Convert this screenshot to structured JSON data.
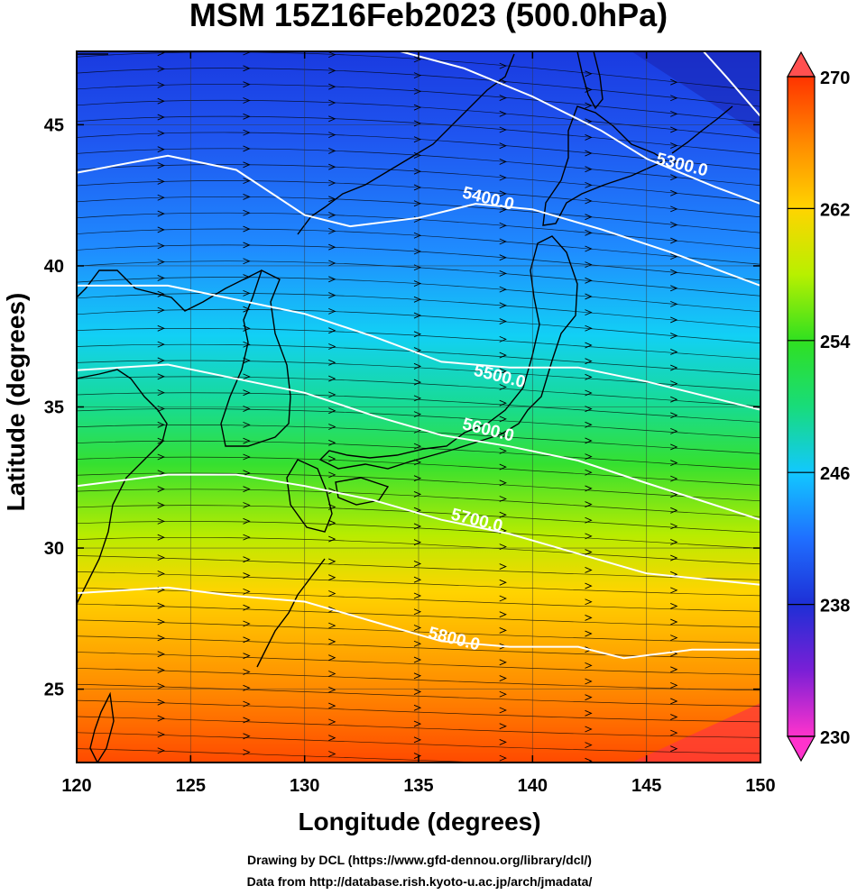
{
  "title": "MSM 15Z16Feb2023 (500.0hPa)",
  "xlabel": "Longitude (degrees)",
  "ylabel": "Latitude  (degrees)",
  "credits": [
    "Drawing by DCL (https://www.gfd-dennou.org/library/dcl/)",
    "Data from http://database.rish.kyoto-u.ac.jp/arch/jmadata/"
  ],
  "x_ticks": [
    "120",
    "125",
    "130",
    "135",
    "140",
    "145",
    "150"
  ],
  "y_ticks": [
    "25",
    "30",
    "35",
    "40",
    "45"
  ],
  "colorbar": {
    "ticks": [
      "230",
      "238",
      "246",
      "254",
      "262",
      "270"
    ],
    "min": 230,
    "max": 270,
    "colors": [
      "#ff33cc",
      "#7a1fd6",
      "#1e2fd6",
      "#1f6fff",
      "#12c8ff",
      "#18dc7a",
      "#30e020",
      "#b8f000",
      "#ffd400",
      "#ff8a00",
      "#ff3300"
    ]
  },
  "chart_data": {
    "type": "heatmap",
    "title": "MSM 15Z16Feb2023 (500.0hPa)",
    "xlabel": "Longitude (degrees)",
    "ylabel": "Latitude  (degrees)",
    "xlim": [
      120,
      150
    ],
    "ylim": [
      22.4,
      47.6
    ],
    "color_range": [
      230,
      270
    ],
    "contour_labels": [
      {
        "label": "5300.0",
        "lon": 146.5,
        "lat": 43.4
      },
      {
        "label": "5400.0",
        "lon": 138,
        "lat": 42.2
      },
      {
        "label": "5500.0",
        "lon": 138.5,
        "lat": 35.9
      },
      {
        "label": "5600.0",
        "lon": 138,
        "lat": 34.0
      },
      {
        "label": "5700.0",
        "lon": 137.5,
        "lat": 30.8
      },
      {
        "label": "5800.0",
        "lon": 136.5,
        "lat": 26.6
      }
    ],
    "contours": [
      {
        "value": "5300.0",
        "points": [
          [
            134.2,
            47.6
          ],
          [
            137,
            47
          ],
          [
            140,
            46
          ],
          [
            143,
            44.8
          ],
          [
            145,
            43.8
          ],
          [
            148,
            42.8
          ],
          [
            150,
            42.2
          ]
        ]
      },
      {
        "value": "5300.0",
        "points": [
          [
            147.5,
            47.6
          ],
          [
            148.5,
            46.7
          ],
          [
            150,
            45.3
          ]
        ]
      },
      {
        "value": "5400.0",
        "points": [
          [
            120,
            43.3
          ],
          [
            124,
            43.9
          ],
          [
            127,
            43.4
          ],
          [
            130,
            41.8
          ],
          [
            132,
            41.4
          ],
          [
            135,
            41.7
          ],
          [
            137.5,
            42.2
          ],
          [
            140,
            42
          ],
          [
            143,
            41.3
          ],
          [
            146,
            40.5
          ],
          [
            150,
            39.3
          ]
        ]
      },
      {
        "value": "5500.0",
        "points": [
          [
            120,
            39.3
          ],
          [
            124,
            39.3
          ],
          [
            127,
            38.8
          ],
          [
            130,
            38.3
          ],
          [
            133,
            37.5
          ],
          [
            136,
            36.6
          ],
          [
            139,
            36.4
          ],
          [
            142,
            36.4
          ],
          [
            145,
            35.9
          ],
          [
            150,
            34.9
          ]
        ]
      },
      {
        "value": "5600.0",
        "points": [
          [
            120,
            36.3
          ],
          [
            124,
            36.5
          ],
          [
            127,
            36
          ],
          [
            130,
            35.5
          ],
          [
            133,
            34.7
          ],
          [
            136,
            34.0
          ],
          [
            139,
            33.6
          ],
          [
            142,
            33.1
          ],
          [
            145,
            32.3
          ],
          [
            150,
            31
          ]
        ]
      },
      {
        "value": "5700.0",
        "points": [
          [
            120,
            32.2
          ],
          [
            124,
            32.6
          ],
          [
            127,
            32.6
          ],
          [
            130,
            32.2
          ],
          [
            133,
            31.7
          ],
          [
            136,
            31.0
          ],
          [
            139,
            30.5
          ],
          [
            142,
            29.8
          ],
          [
            145,
            29.1
          ],
          [
            150,
            28.7
          ]
        ]
      },
      {
        "value": "5800.0",
        "points": [
          [
            120,
            28.4
          ],
          [
            124,
            28.6
          ],
          [
            127,
            28.3
          ],
          [
            130,
            28.1
          ],
          [
            133,
            27.4
          ],
          [
            136,
            26.7
          ],
          [
            139,
            26.5
          ],
          [
            142,
            26.5
          ],
          [
            144,
            26.1
          ],
          [
            147,
            26.4
          ],
          [
            150,
            26.4
          ]
        ]
      }
    ]
  }
}
